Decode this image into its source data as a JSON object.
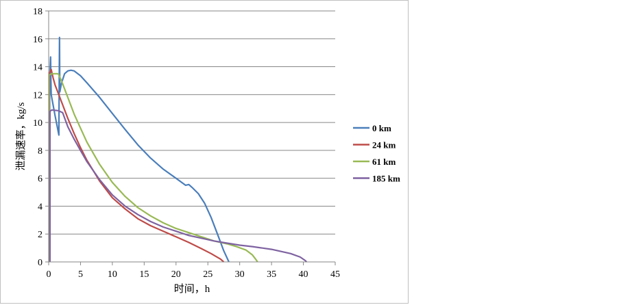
{
  "chart_data": {
    "type": "line",
    "xlabel": "时间，h",
    "ylabel": "泄漏速率，kg/s",
    "xlim": [
      0,
      45
    ],
    "ylim": [
      0,
      18
    ],
    "xticks": [
      0,
      5,
      10,
      15,
      20,
      25,
      30,
      35,
      40,
      45
    ],
    "yticks": [
      0,
      2,
      4,
      6,
      8,
      10,
      12,
      14,
      16,
      18
    ],
    "grid": "horizontal",
    "legend": "right",
    "series": [
      {
        "name": "0 km",
        "color": "#4a7ebb",
        "points": [
          [
            0.15,
            0
          ],
          [
            0.15,
            13
          ],
          [
            0.3,
            14.7
          ],
          [
            0.35,
            13
          ],
          [
            0.4,
            12
          ],
          [
            1.0,
            10.5
          ],
          [
            1.6,
            9.1
          ],
          [
            1.65,
            12.5
          ],
          [
            1.7,
            16.1
          ],
          [
            1.75,
            12.2
          ],
          [
            2.0,
            12.8
          ],
          [
            2.5,
            13.5
          ],
          [
            3.0,
            13.7
          ],
          [
            3.5,
            13.75
          ],
          [
            4.0,
            13.7
          ],
          [
            5.0,
            13.35
          ],
          [
            6.0,
            12.85
          ],
          [
            8.0,
            11.8
          ],
          [
            10.0,
            10.65
          ],
          [
            12.0,
            9.5
          ],
          [
            14.0,
            8.4
          ],
          [
            16.0,
            7.45
          ],
          [
            18.0,
            6.65
          ],
          [
            20.0,
            6.0
          ],
          [
            21.5,
            5.5
          ],
          [
            22.0,
            5.55
          ],
          [
            22.5,
            5.35
          ],
          [
            23.5,
            4.9
          ],
          [
            24.5,
            4.2
          ],
          [
            25.5,
            3.2
          ],
          [
            26.5,
            2.0
          ],
          [
            27.5,
            0.8
          ],
          [
            28.3,
            0
          ]
        ]
      },
      {
        "name": "24 km",
        "color": "#be4b48",
        "points": [
          [
            0.1,
            0
          ],
          [
            0.1,
            13.5
          ],
          [
            0.4,
            13.8
          ],
          [
            0.7,
            13.2
          ],
          [
            1.0,
            12.7
          ],
          [
            2.0,
            11.5
          ],
          [
            3.0,
            10.3
          ],
          [
            4.0,
            9.2
          ],
          [
            5.0,
            8.2
          ],
          [
            6.0,
            7.3
          ],
          [
            8.0,
            5.8
          ],
          [
            10.0,
            4.6
          ],
          [
            12.0,
            3.8
          ],
          [
            14.0,
            3.1
          ],
          [
            16.0,
            2.6
          ],
          [
            18.0,
            2.2
          ],
          [
            20.0,
            1.8
          ],
          [
            22.0,
            1.4
          ],
          [
            24.0,
            0.95
          ],
          [
            25.5,
            0.6
          ],
          [
            27.0,
            0.2
          ],
          [
            27.5,
            0
          ]
        ]
      },
      {
        "name": "61 km",
        "color": "#98b954",
        "points": [
          [
            0.05,
            0
          ],
          [
            0.05,
            13.4
          ],
          [
            0.5,
            13.5
          ],
          [
            1.5,
            13.5
          ],
          [
            2.0,
            13.0
          ],
          [
            3.0,
            11.8
          ],
          [
            4.0,
            10.6
          ],
          [
            5.0,
            9.6
          ],
          [
            6.0,
            8.6
          ],
          [
            8.0,
            7.0
          ],
          [
            10.0,
            5.7
          ],
          [
            12.0,
            4.7
          ],
          [
            14.0,
            3.9
          ],
          [
            16.0,
            3.3
          ],
          [
            18.0,
            2.8
          ],
          [
            20.0,
            2.4
          ],
          [
            22.0,
            2.1
          ],
          [
            24.0,
            1.8
          ],
          [
            26.0,
            1.5
          ],
          [
            28.0,
            1.3
          ],
          [
            29.5,
            1.1
          ],
          [
            31.0,
            0.85
          ],
          [
            32.0,
            0.5
          ],
          [
            32.5,
            0.2
          ],
          [
            32.8,
            0
          ]
        ]
      },
      {
        "name": "185 km",
        "color": "#7e62a1",
        "points": [
          [
            0.2,
            0
          ],
          [
            0.2,
            10.8
          ],
          [
            0.5,
            10.9
          ],
          [
            1.5,
            10.85
          ],
          [
            2.2,
            10.7
          ],
          [
            3.0,
            9.7
          ],
          [
            4.0,
            8.8
          ],
          [
            5.0,
            8.0
          ],
          [
            6.0,
            7.2
          ],
          [
            8.0,
            5.9
          ],
          [
            10.0,
            4.8
          ],
          [
            12.0,
            4.0
          ],
          [
            14.0,
            3.4
          ],
          [
            16.0,
            2.9
          ],
          [
            18.0,
            2.5
          ],
          [
            20.0,
            2.2
          ],
          [
            22.0,
            1.9
          ],
          [
            24.0,
            1.7
          ],
          [
            26.0,
            1.5
          ],
          [
            28.0,
            1.35
          ],
          [
            30.0,
            1.2
          ],
          [
            32.0,
            1.1
          ],
          [
            35.0,
            0.9
          ],
          [
            38.0,
            0.6
          ],
          [
            39.5,
            0.35
          ],
          [
            40.3,
            0.1
          ],
          [
            40.5,
            0
          ]
        ]
      }
    ]
  }
}
